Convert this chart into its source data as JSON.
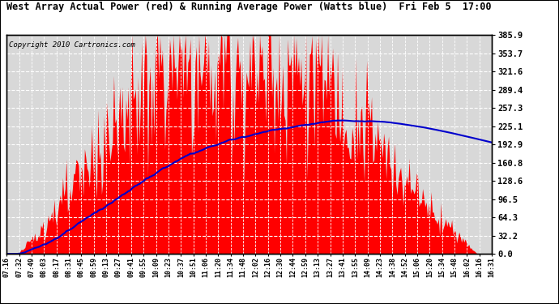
{
  "title": "West Array Actual Power (red) & Running Average Power (Watts blue)  Fri Feb 5  17:00",
  "copyright": "Copyright 2010 Cartronics.com",
  "yticks": [
    0.0,
    32.2,
    64.3,
    96.5,
    128.6,
    160.8,
    192.9,
    225.1,
    257.3,
    289.4,
    321.6,
    353.7,
    385.9
  ],
  "ymax": 385.9,
  "bg_color": "#ffffff",
  "plot_bg_color": "#d8d8d8",
  "bar_color": "#ff0000",
  "avg_color": "#0000cc",
  "grid_color": "#ffffff",
  "xtick_labels": [
    "07:16",
    "07:32",
    "07:49",
    "08:03",
    "08:17",
    "08:31",
    "08:45",
    "08:59",
    "09:13",
    "09:27",
    "09:41",
    "09:55",
    "10:09",
    "10:23",
    "10:37",
    "10:51",
    "11:06",
    "11:20",
    "11:34",
    "11:48",
    "12:02",
    "12:16",
    "12:30",
    "12:44",
    "12:59",
    "13:13",
    "13:27",
    "13:41",
    "13:55",
    "14:09",
    "14:23",
    "14:38",
    "14:52",
    "15:06",
    "15:20",
    "15:34",
    "15:48",
    "16:02",
    "16:16",
    "16:31"
  ]
}
